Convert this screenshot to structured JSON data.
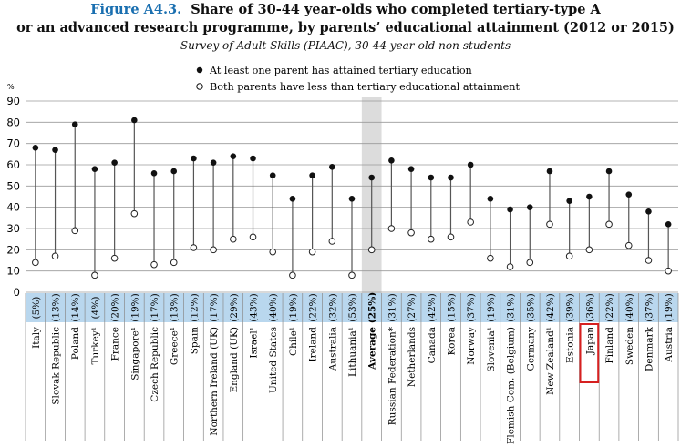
{
  "figure_label": "Figure A4.3.",
  "title_line1": "Share of 30-44 year-olds who completed tertiary-type A",
  "title_line2": "or an advanced research programme, by parents’ educational attainment (2012 or 2015)",
  "subtitle": "Survey of Adult Skills (PIAAC), 30-44 year-old non-students",
  "chart_data": {
    "type": "dot-range",
    "ylabel": "%",
    "ylim": [
      0,
      90
    ],
    "yticks": [
      0,
      10,
      20,
      30,
      40,
      50,
      60,
      70,
      80,
      90
    ],
    "grid": true,
    "legend_position": "top",
    "highlighted_category": "Japan",
    "average_category": "Average",
    "series": [
      {
        "name": "At least one parent has attained tertiary education",
        "marker": "filled-circle",
        "values": [
          68,
          67,
          79,
          58,
          61,
          81,
          56,
          57,
          63,
          61,
          64,
          63,
          55,
          44,
          55,
          59,
          44,
          54,
          62,
          58,
          54,
          54,
          60,
          44,
          39,
          40,
          57,
          43,
          45,
          57,
          46,
          38,
          32
        ]
      },
      {
        "name": "Both parents have less than tertiary educational attainment",
        "marker": "open-circle",
        "values": [
          14,
          17,
          29,
          8,
          16,
          37,
          13,
          14,
          21,
          20,
          25,
          26,
          19,
          8,
          19,
          24,
          8,
          20,
          30,
          28,
          25,
          26,
          33,
          16,
          12,
          14,
          32,
          17,
          20,
          32,
          22,
          15,
          10
        ]
      }
    ],
    "categories": [
      "Italy",
      "Slovak Republic",
      "Poland",
      "Turkey¹",
      "France",
      "Singapore¹",
      "Czech Republic",
      "Greece¹",
      "Spain",
      "Northern Ireland (UK)",
      "England (UK)",
      "Israel¹",
      "United States",
      "Chile¹",
      "Ireland",
      "Australia",
      "Lithuania¹",
      "Average",
      "Russian Federation*",
      "Netherlands",
      "Canada",
      "Korea",
      "Norway",
      "Slovenia¹",
      "Flemish Com. (Belgium)",
      "Germany",
      "New Zealand¹",
      "Estonia",
      "Japan",
      "Finland",
      "Sweden",
      "Denmark",
      "Austria"
    ],
    "shares": [
      "(5%)",
      "(13%)",
      "(14%)",
      "(4%)",
      "(20%)",
      "(19%)",
      "(17%)",
      "(13%)",
      "(12%)",
      "(17%)",
      "(29%)",
      "(43%)",
      "(40%)",
      "(19%)",
      "(22%)",
      "(32%)",
      "(53%)",
      "(25%)",
      "(31%)",
      "(27%)",
      "(42%)",
      "(15%)",
      "(37%)",
      "(19%)",
      "(31%)",
      "(35%)",
      "(42%)",
      "(39%)",
      "(36%)",
      "(22%)",
      "(40%)",
      "(37%)",
      "(19%)"
    ]
  },
  "colors": {
    "band_fill": "#b9d7ee",
    "average_fill": "#dcdcdc",
    "highlight_box": "#d62020",
    "stem": "#555555",
    "grid": "#9a9a9a"
  }
}
